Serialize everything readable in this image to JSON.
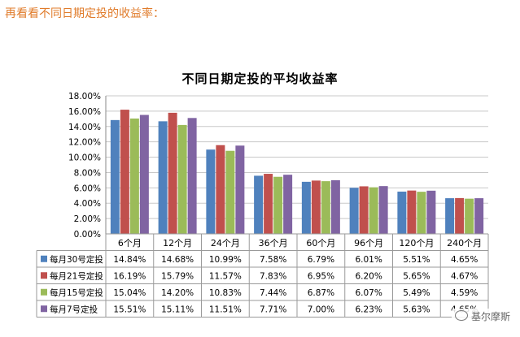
{
  "intro": "再看看不同日期定投的收益率：",
  "watermark": "基尔摩斯",
  "chart_data": {
    "type": "bar",
    "title": "不同日期定投的平均收益率",
    "categories": [
      "6个月",
      "12个月",
      "24个月",
      "36个月",
      "60个月",
      "96个月",
      "120个月",
      "240个月"
    ],
    "ylim": [
      0,
      18
    ],
    "yticks": [
      "0.00%",
      "2.00%",
      "4.00%",
      "6.00%",
      "8.00%",
      "10.00%",
      "12.00%",
      "14.00%",
      "16.00%",
      "18.00%"
    ],
    "grid": true,
    "legend": "table-below",
    "series": [
      {
        "name": "每月30号定投",
        "color": "#4f81bd",
        "values": [
          14.84,
          14.68,
          10.99,
          7.58,
          6.79,
          6.01,
          5.51,
          4.65
        ],
        "labels": [
          "14.84%",
          "14.68%",
          "10.99%",
          "7.58%",
          "6.79%",
          "6.01%",
          "5.51%",
          "4.65%"
        ]
      },
      {
        "name": "每月21号定投",
        "color": "#c0504d",
        "values": [
          16.19,
          15.79,
          11.57,
          7.83,
          6.95,
          6.2,
          5.65,
          4.67
        ],
        "labels": [
          "16.19%",
          "15.79%",
          "11.57%",
          "7.83%",
          "6.95%",
          "6.20%",
          "5.65%",
          "4.67%"
        ]
      },
      {
        "name": "每月15号定投",
        "color": "#9bbb59",
        "values": [
          15.04,
          14.2,
          10.83,
          7.44,
          6.87,
          6.07,
          5.49,
          4.59
        ],
        "labels": [
          "15.04%",
          "14.20%",
          "10.83%",
          "7.44%",
          "6.87%",
          "6.07%",
          "5.49%",
          "4.59%"
        ]
      },
      {
        "name": "每月7号定投",
        "color": "#8064a2",
        "values": [
          15.51,
          15.11,
          11.51,
          7.71,
          7.0,
          6.23,
          5.63,
          4.65
        ],
        "labels": [
          "15.51%",
          "15.11%",
          "11.51%",
          "7.71%",
          "7.00%",
          "6.23%",
          "5.63%",
          "4.65%"
        ]
      }
    ]
  }
}
